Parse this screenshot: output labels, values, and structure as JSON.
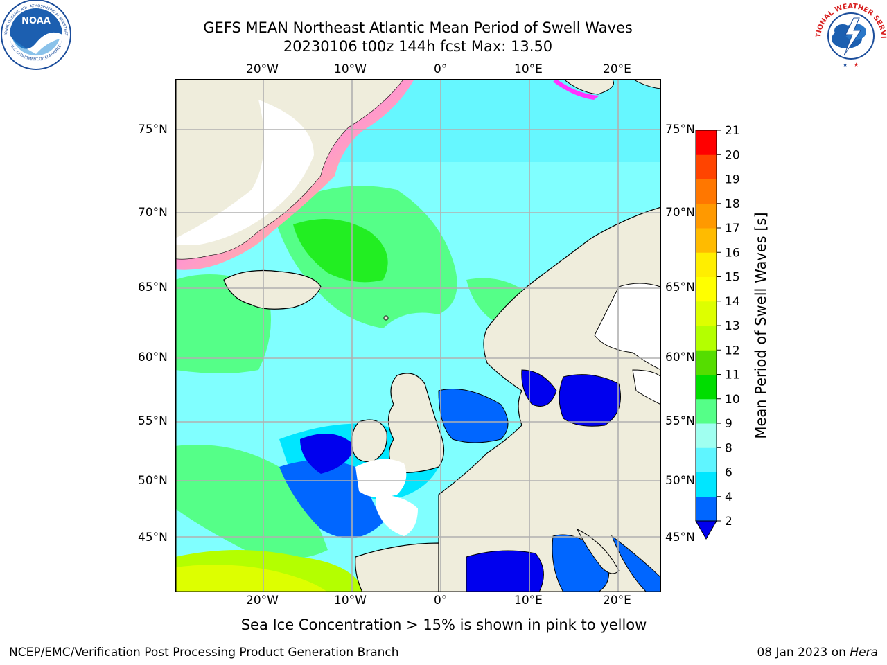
{
  "header": {
    "title_line1": "GEFS MEAN Northeast Atlantic Mean Period of Swell Waves",
    "title_line2": "20230106 t00z 144h fcst   Max: 13.50"
  },
  "logos": {
    "noaa": {
      "text": "NOAA",
      "ring_text": "NATIONAL OCEANIC AND ATMOSPHERIC ADMINISTRATION",
      "ring_text_bottom": "U.S. DEPARTMENT OF COMMERCE"
    },
    "nws": {
      "ring_text": "NATIONAL WEATHER SERVICE"
    }
  },
  "map": {
    "lon_labels": [
      "20°W",
      "10°W",
      "0°",
      "10°E",
      "20°E"
    ],
    "lat_labels": [
      "75°N",
      "70°N",
      "65°N",
      "60°N",
      "55°N",
      "50°N",
      "45°N"
    ],
    "extent": {
      "lon": [
        -30,
        24.5
      ],
      "lat": [
        41.8,
        78.2
      ]
    },
    "gridlines": true,
    "colors": {
      "land": "#efeddc",
      "ocean_base": "#80ffff",
      "no_data": "#ffffff",
      "grid": "#b0b0b0"
    }
  },
  "colorbar": {
    "label": "Mean Period of Swell Waves [s]",
    "ticks": [
      "2",
      "4",
      "6",
      "8",
      "9",
      "10",
      "11",
      "12",
      "13",
      "14",
      "15",
      "16",
      "17",
      "18",
      "19",
      "20",
      "21"
    ],
    "colors": [
      "#0066ff",
      "#00e6ff",
      "#5ff5ff",
      "#a0fff0",
      "#55ff88",
      "#00dd00",
      "#55dd00",
      "#b4ff00",
      "#ddff00",
      "#ffff00",
      "#ffee00",
      "#ffbb00",
      "#ff9900",
      "#ff7700",
      "#ff4400",
      "#ff0000"
    ],
    "under_color": "#0000ee"
  },
  "notes": {
    "sea_ice": "Sea Ice Concentration > 15% is shown in pink to yellow"
  },
  "footer": {
    "left": "NCEP/EMC/Verification Post Processing Product Generation Branch",
    "date": "08 Jan 2023 on ",
    "machine": "Hera"
  }
}
